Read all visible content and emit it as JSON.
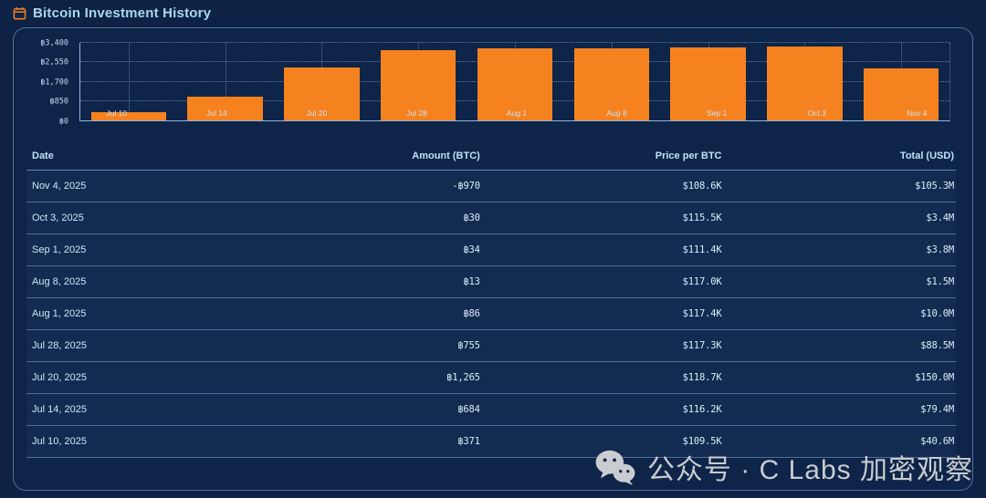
{
  "header": {
    "title": "Bitcoin Investment History",
    "icon": "calendar-icon"
  },
  "chart_data": {
    "type": "bar",
    "title": "",
    "categories": [
      "Jul 10",
      "Jul 14",
      "Jul 20",
      "Jul 28",
      "Aug 1",
      "Aug 8",
      "Sep 1",
      "Oct 3",
      "Nov 4"
    ],
    "values": [
      371,
      1055,
      2320,
      3075,
      3161,
      3174,
      3208,
      3238,
      2268
    ],
    "y_tick_labels": [
      "฿0",
      "฿850",
      "฿1,700",
      "฿2,550",
      "฿3,400"
    ],
    "y_tick_values": [
      0,
      850,
      1700,
      2550,
      3400
    ],
    "ylim": [
      0,
      3400
    ],
    "xlabel": "",
    "ylabel": "",
    "bar_color": "#f6821f",
    "grid": "dotted",
    "legend_position": "none"
  },
  "table": {
    "columns": [
      "Date",
      "Amount (BTC)",
      "Price per BTC",
      "Total (USD)"
    ],
    "rows": [
      {
        "date": "Nov 4, 2025",
        "amount_btc": "-฿970",
        "price_per_btc": "$108.6K",
        "total_usd": "$105.3M"
      },
      {
        "date": "Oct 3, 2025",
        "amount_btc": "฿30",
        "price_per_btc": "$115.5K",
        "total_usd": "$3.4M"
      },
      {
        "date": "Sep 1, 2025",
        "amount_btc": "฿34",
        "price_per_btc": "$111.4K",
        "total_usd": "$3.8M"
      },
      {
        "date": "Aug 8, 2025",
        "amount_btc": "฿13",
        "price_per_btc": "$117.0K",
        "total_usd": "$1.5M"
      },
      {
        "date": "Aug 1, 2025",
        "amount_btc": "฿86",
        "price_per_btc": "$117.4K",
        "total_usd": "$10.0M"
      },
      {
        "date": "Jul 28, 2025",
        "amount_btc": "฿755",
        "price_per_btc": "$117.3K",
        "total_usd": "$88.5M"
      },
      {
        "date": "Jul 20, 2025",
        "amount_btc": "฿1,265",
        "price_per_btc": "$118.7K",
        "total_usd": "$150.0M"
      },
      {
        "date": "Jul 14, 2025",
        "amount_btc": "฿684",
        "price_per_btc": "$116.2K",
        "total_usd": "$79.4M"
      },
      {
        "date": "Jul 10, 2025",
        "amount_btc": "฿371",
        "price_per_btc": "$109.5K",
        "total_usd": "$40.6M"
      }
    ]
  },
  "watermark": {
    "icon": "wechat-icon",
    "text": "公众号 · C Labs 加密观察"
  }
}
